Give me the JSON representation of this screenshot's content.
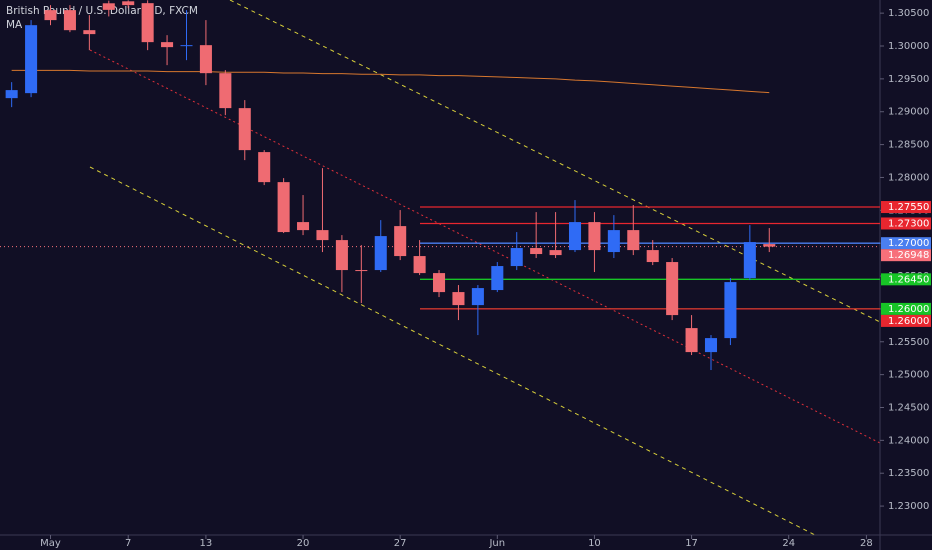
{
  "chart_data": {
    "type": "candlestick",
    "title": "British Pound / U.S. Dollar, 1D, FXCM",
    "up_color": "#2f6bf5",
    "down_color": "#ef6b72",
    "x": [
      0,
      1,
      2,
      3,
      4,
      5,
      6,
      7,
      8,
      9,
      10,
      11,
      12,
      13,
      14,
      15,
      16,
      17,
      18,
      19,
      20,
      21,
      22,
      23,
      24,
      25,
      26,
      27,
      28,
      29,
      30,
      31,
      32,
      33,
      34,
      35,
      36,
      37,
      38,
      39
    ],
    "open": [
      1.29207,
      1.29283,
      1.30546,
      1.30546,
      1.30241,
      1.3065,
      1.3068,
      1.30652,
      1.30059,
      1.29998,
      1.30013,
      1.29587,
      1.29055,
      1.28386,
      1.27929,
      1.27321,
      1.27199,
      1.27047,
      1.26591,
      1.26591,
      1.2726,
      1.26804,
      1.26545,
      1.26256,
      1.26058,
      1.26287,
      1.26652,
      1.26926,
      1.26895,
      1.26895,
      1.27321,
      1.26865,
      1.27199,
      1.26895,
      1.26713,
      1.25708,
      1.25343,
      1.25556,
      1.26469,
      1.26986
    ],
    "high": [
      1.2945,
      1.30394,
      1.30622,
      1.30622,
      1.3047,
      1.3069,
      1.30695,
      1.30695,
      1.30165,
      1.30546,
      1.30394,
      1.29633,
      1.29177,
      1.28416,
      1.2799,
      1.27732,
      1.28142,
      1.27123,
      1.26971,
      1.27351,
      1.27504,
      1.27047,
      1.26591,
      1.26363,
      1.26363,
      1.26713,
      1.27169,
      1.27473,
      1.27473,
      1.27656,
      1.27473,
      1.27427,
      1.2758,
      1.27047,
      1.26774,
      1.25906,
      1.25602,
      1.26469,
      1.27275,
      1.2723
    ],
    "low": [
      1.2907,
      1.29222,
      1.30317,
      1.30211,
      1.29937,
      1.3045,
      1.30576,
      1.29937,
      1.29709,
      1.29785,
      1.29405,
      1.28948,
      1.28264,
      1.27884,
      1.27154,
      1.27123,
      1.26865,
      1.26256,
      1.26089,
      1.26561,
      1.26743,
      1.26515,
      1.2618,
      1.2583,
      1.25602,
      1.26256,
      1.26591,
      1.26774,
      1.26774,
      1.26865,
      1.26561,
      1.26774,
      1.26819,
      1.26667,
      1.2583,
      1.25298,
      1.2507,
      1.2545,
      1.26439,
      1.26865
    ],
    "close": [
      1.29329,
      1.30317,
      1.30394,
      1.30241,
      1.30181,
      1.3055,
      1.30622,
      1.30059,
      1.29983,
      1.30013,
      1.29587,
      1.29055,
      1.28416,
      1.27929,
      1.27169,
      1.27199,
      1.27047,
      1.26591,
      1.26576,
      1.27108,
      1.26804,
      1.26545,
      1.26256,
      1.26058,
      1.26317,
      1.26652,
      1.26926,
      1.26835,
      1.26819,
      1.27321,
      1.26895,
      1.27199,
      1.26895,
      1.26713,
      1.25906,
      1.25343,
      1.25556,
      1.26408,
      1.27017,
      1.26948
    ],
    "series": [
      {
        "name": "MA",
        "color": "#d7772e",
        "values": [
          1.2963,
          1.2963,
          1.2963,
          1.2963,
          1.2962,
          1.2962,
          1.2962,
          1.2962,
          1.2961,
          1.2961,
          1.2961,
          1.296,
          1.296,
          1.296,
          1.2959,
          1.2959,
          1.2958,
          1.2958,
          1.2957,
          1.2957,
          1.2956,
          1.2956,
          1.2955,
          1.2955,
          1.2954,
          1.2953,
          1.2952,
          1.2951,
          1.295,
          1.2948,
          1.2947,
          1.2945,
          1.2943,
          1.2941,
          1.2939,
          1.2937,
          1.2935,
          1.2933,
          1.2931,
          1.2929
        ]
      }
    ],
    "price_lines": [
      {
        "value": 1.2755,
        "label": "1.27550",
        "color": "#e8262f"
      },
      {
        "value": 1.273,
        "label": "1.27300",
        "color": "#e8262f"
      },
      {
        "value": 1.27,
        "label": "1.27000",
        "color": "#4a7ff0"
      },
      {
        "value": 1.2645,
        "label": "1.26450",
        "color": "#17c426"
      },
      {
        "value": 1.26,
        "label": "1.26000",
        "color": "#17c426"
      },
      {
        "value": 1.26,
        "label": "1.26000",
        "color": "#e8262f"
      }
    ],
    "last_price": {
      "value": 1.26948,
      "label": "1.26948",
      "color": "#f7707a"
    },
    "xlim": [
      -0.6,
      44.7
    ],
    "ylim": [
      1.2256,
      1.307
    ],
    "xticks": [
      {
        "value": 2,
        "label": "May"
      },
      {
        "value": 6,
        "label": "7"
      },
      {
        "value": 10,
        "label": "13"
      },
      {
        "value": 15,
        "label": "20"
      },
      {
        "value": 20,
        "label": "27"
      },
      {
        "value": 25,
        "label": "Jun"
      },
      {
        "value": 30,
        "label": "10"
      },
      {
        "value": 35,
        "label": "17"
      },
      {
        "value": 40,
        "label": "24"
      },
      {
        "value": 44,
        "label": "28"
      }
    ],
    "yticks": [
      {
        "value": 1.305,
        "label": "1.30500"
      },
      {
        "value": 1.3,
        "label": "1.30000"
      },
      {
        "value": 1.295,
        "label": "1.29500"
      },
      {
        "value": 1.29,
        "label": "1.29000"
      },
      {
        "value": 1.285,
        "label": "1.28500"
      },
      {
        "value": 1.28,
        "label": "1.28000"
      },
      {
        "value": 1.275,
        "label": "1.27500"
      },
      {
        "value": 1.27,
        "label": "1.27000"
      },
      {
        "value": 1.265,
        "label": "1.26500"
      },
      {
        "value": 1.26,
        "label": "1.26000"
      },
      {
        "value": 1.255,
        "label": "1.25500"
      },
      {
        "value": 1.25,
        "label": "1.25000"
      },
      {
        "value": 1.245,
        "label": "1.24500"
      },
      {
        "value": 1.24,
        "label": "1.24000"
      },
      {
        "value": 1.235,
        "label": "1.23500"
      },
      {
        "value": 1.23,
        "label": "1.23000"
      }
    ]
  }
}
